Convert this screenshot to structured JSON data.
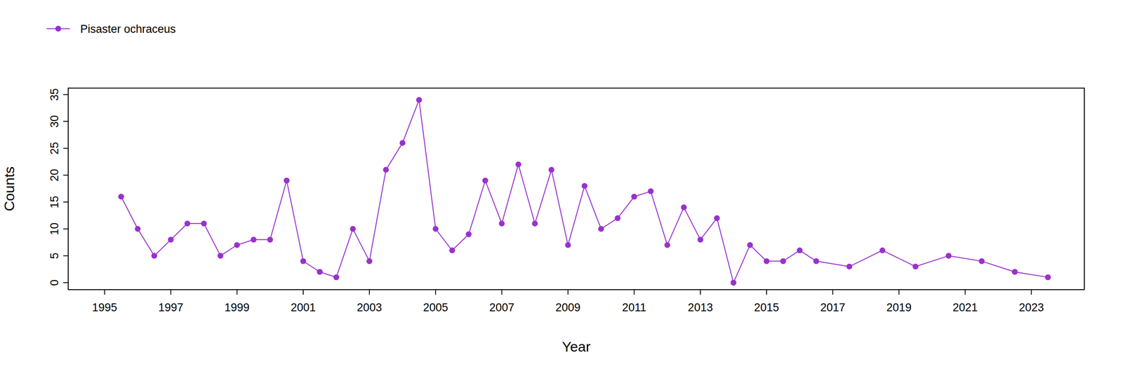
{
  "chart_data": {
    "type": "line",
    "x_label": "Year",
    "y_label": "Counts",
    "legend": "top-left",
    "grid": false,
    "xlim": [
      1993.9,
      2024.6
    ],
    "ylim": [
      -1.3,
      36.2
    ],
    "xticks": [
      1995,
      1997,
      1999,
      2001,
      2003,
      2005,
      2007,
      2009,
      2011,
      2013,
      2015,
      2017,
      2019,
      2021,
      2023
    ],
    "yticks": [
      0,
      5,
      10,
      15,
      20,
      25,
      30,
      35
    ],
    "x": [
      1995.5,
      1996.0,
      1996.5,
      1997.0,
      1997.5,
      1998.0,
      1998.5,
      1999.0,
      1999.5,
      2000.0,
      2000.5,
      2001.0,
      2001.5,
      2002.0,
      2002.5,
      2003.0,
      2003.5,
      2004.0,
      2004.5,
      2005.0,
      2005.5,
      2006.0,
      2006.5,
      2007.0,
      2007.5,
      2008.0,
      2008.5,
      2009.0,
      2009.5,
      2010.0,
      2010.5,
      2011.0,
      2011.5,
      2012.0,
      2012.5,
      2013.0,
      2013.5,
      2014.0,
      2014.5,
      2015.0,
      2015.5,
      2016.0,
      2016.5,
      2017.5,
      2018.5,
      2019.5,
      2020.5,
      2021.5,
      2022.5,
      2023.5
    ],
    "series": [
      {
        "name": "Pisaster ochraceus",
        "color": "#9932cc",
        "marker": "circle",
        "line_style": "solid",
        "values": [
          16,
          10,
          5,
          8,
          11,
          11,
          5,
          7,
          8,
          8,
          19,
          4,
          2,
          1,
          10,
          4,
          21,
          26,
          34,
          10,
          6,
          9,
          19,
          11,
          22,
          11,
          21,
          7,
          18,
          10,
          12,
          16,
          17,
          7,
          14,
          8,
          12,
          0,
          7,
          4,
          4,
          6,
          4,
          3,
          6,
          3,
          5,
          4,
          2,
          1
        ]
      }
    ]
  }
}
